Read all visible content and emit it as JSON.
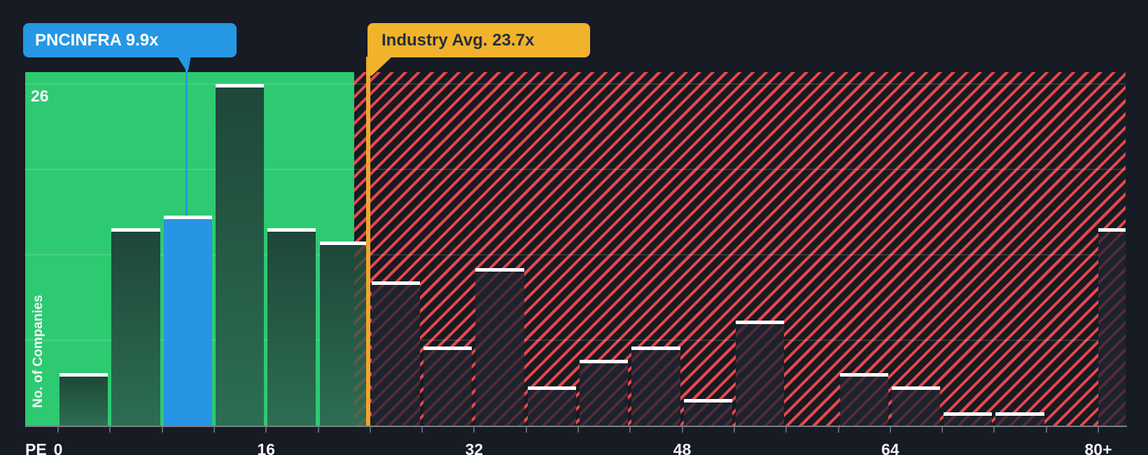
{
  "colors": {
    "background": "#161b24",
    "below_zone_green": "#2dca72",
    "green_bar_top": "#1e4738",
    "green_bar_bottom": "#2c6e53",
    "highlight_blue": "#2697e3",
    "hatch_red": "#e84749",
    "above_zone_bar": "#1c222e",
    "industry_box_orange": "#f0b32b",
    "industry_line_orange": "#f0a62a",
    "bar_cap_white": "#ffffff"
  },
  "chart_data": {
    "type": "bar",
    "subtype": "histogram",
    "xlabel": "PE",
    "ylabel": "No. of Companies",
    "y_top_tick": "26",
    "ylim": [
      0,
      26
    ],
    "xlim": [
      0,
      84
    ],
    "bin_width": 4,
    "x_tick_values": [
      0,
      16,
      32,
      48,
      64,
      80
    ],
    "x_tick_labels": [
      "0",
      "16",
      "32",
      "48",
      "64",
      "80+"
    ],
    "minor_tick_step": 4,
    "grid_values": [
      26,
      19.5,
      13,
      6.5
    ],
    "bins": [
      {
        "start": 0,
        "count": 4,
        "zone": "below"
      },
      {
        "start": 4,
        "count": 15,
        "zone": "below"
      },
      {
        "start": 8,
        "count": 16,
        "zone": "below",
        "highlight": true
      },
      {
        "start": 12,
        "count": 26,
        "zone": "below"
      },
      {
        "start": 16,
        "count": 15,
        "zone": "below"
      },
      {
        "start": 20,
        "count": 14,
        "zone": "below"
      },
      {
        "start": 24,
        "count": 11,
        "zone": "above"
      },
      {
        "start": 28,
        "count": 6,
        "zone": "above"
      },
      {
        "start": 32,
        "count": 12,
        "zone": "above"
      },
      {
        "start": 36,
        "count": 3,
        "zone": "above"
      },
      {
        "start": 40,
        "count": 5,
        "zone": "above"
      },
      {
        "start": 44,
        "count": 6,
        "zone": "above"
      },
      {
        "start": 48,
        "count": 2,
        "zone": "above"
      },
      {
        "start": 52,
        "count": 8,
        "zone": "above"
      },
      {
        "start": 56,
        "count": 0,
        "zone": "above"
      },
      {
        "start": 60,
        "count": 4,
        "zone": "above"
      },
      {
        "start": 64,
        "count": 3,
        "zone": "above"
      },
      {
        "start": 68,
        "count": 1,
        "zone": "above"
      },
      {
        "start": 72,
        "count": 1,
        "zone": "above"
      },
      {
        "start": 76,
        "count": 0,
        "zone": "above"
      },
      {
        "start": 80,
        "count": 15,
        "zone": "above",
        "open_ended": true
      }
    ],
    "markers": {
      "company": {
        "label": "PNCINFRA 9.9x",
        "value": 9.9
      },
      "industry": {
        "label": "Industry Avg. 23.7x",
        "value": 23.7
      }
    }
  }
}
